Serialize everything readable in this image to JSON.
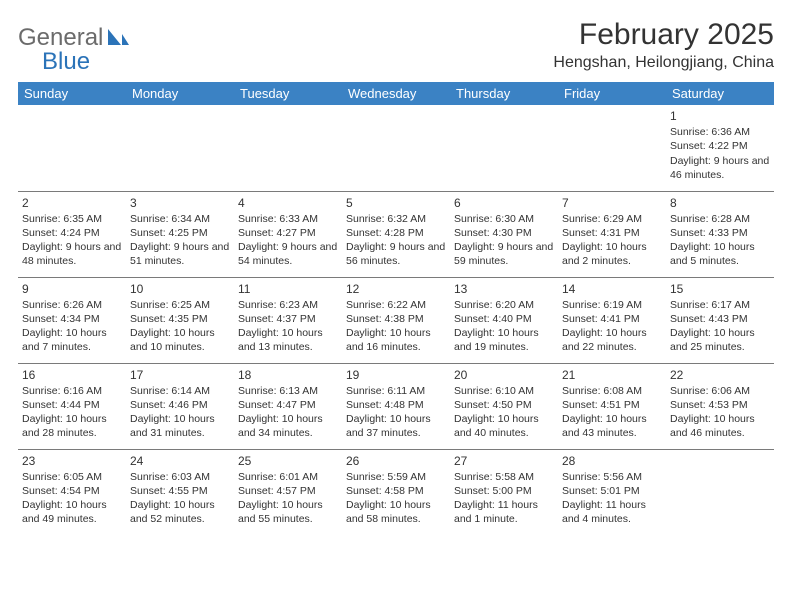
{
  "logo": {
    "part1": "General",
    "part2": "Blue"
  },
  "title": "February 2025",
  "location": "Hengshan, Heilongjiang, China",
  "colors": {
    "header_bg": "#3b82c4",
    "header_fg": "#ffffff",
    "logo_gray": "#6b6b6b",
    "logo_blue": "#2b73b8",
    "text": "#333333",
    "rule": "#7a7a7a",
    "bg": "#ffffff"
  },
  "weekdays": [
    "Sunday",
    "Monday",
    "Tuesday",
    "Wednesday",
    "Thursday",
    "Friday",
    "Saturday"
  ],
  "weeks": [
    [
      null,
      null,
      null,
      null,
      null,
      null,
      {
        "d": "1",
        "sr": "6:36 AM",
        "ss": "4:22 PM",
        "dl": "9 hours and 46 minutes."
      }
    ],
    [
      {
        "d": "2",
        "sr": "6:35 AM",
        "ss": "4:24 PM",
        "dl": "9 hours and 48 minutes."
      },
      {
        "d": "3",
        "sr": "6:34 AM",
        "ss": "4:25 PM",
        "dl": "9 hours and 51 minutes."
      },
      {
        "d": "4",
        "sr": "6:33 AM",
        "ss": "4:27 PM",
        "dl": "9 hours and 54 minutes."
      },
      {
        "d": "5",
        "sr": "6:32 AM",
        "ss": "4:28 PM",
        "dl": "9 hours and 56 minutes."
      },
      {
        "d": "6",
        "sr": "6:30 AM",
        "ss": "4:30 PM",
        "dl": "9 hours and 59 minutes."
      },
      {
        "d": "7",
        "sr": "6:29 AM",
        "ss": "4:31 PM",
        "dl": "10 hours and 2 minutes."
      },
      {
        "d": "8",
        "sr": "6:28 AM",
        "ss": "4:33 PM",
        "dl": "10 hours and 5 minutes."
      }
    ],
    [
      {
        "d": "9",
        "sr": "6:26 AM",
        "ss": "4:34 PM",
        "dl": "10 hours and 7 minutes."
      },
      {
        "d": "10",
        "sr": "6:25 AM",
        "ss": "4:35 PM",
        "dl": "10 hours and 10 minutes."
      },
      {
        "d": "11",
        "sr": "6:23 AM",
        "ss": "4:37 PM",
        "dl": "10 hours and 13 minutes."
      },
      {
        "d": "12",
        "sr": "6:22 AM",
        "ss": "4:38 PM",
        "dl": "10 hours and 16 minutes."
      },
      {
        "d": "13",
        "sr": "6:20 AM",
        "ss": "4:40 PM",
        "dl": "10 hours and 19 minutes."
      },
      {
        "d": "14",
        "sr": "6:19 AM",
        "ss": "4:41 PM",
        "dl": "10 hours and 22 minutes."
      },
      {
        "d": "15",
        "sr": "6:17 AM",
        "ss": "4:43 PM",
        "dl": "10 hours and 25 minutes."
      }
    ],
    [
      {
        "d": "16",
        "sr": "6:16 AM",
        "ss": "4:44 PM",
        "dl": "10 hours and 28 minutes."
      },
      {
        "d": "17",
        "sr": "6:14 AM",
        "ss": "4:46 PM",
        "dl": "10 hours and 31 minutes."
      },
      {
        "d": "18",
        "sr": "6:13 AM",
        "ss": "4:47 PM",
        "dl": "10 hours and 34 minutes."
      },
      {
        "d": "19",
        "sr": "6:11 AM",
        "ss": "4:48 PM",
        "dl": "10 hours and 37 minutes."
      },
      {
        "d": "20",
        "sr": "6:10 AM",
        "ss": "4:50 PM",
        "dl": "10 hours and 40 minutes."
      },
      {
        "d": "21",
        "sr": "6:08 AM",
        "ss": "4:51 PM",
        "dl": "10 hours and 43 minutes."
      },
      {
        "d": "22",
        "sr": "6:06 AM",
        "ss": "4:53 PM",
        "dl": "10 hours and 46 minutes."
      }
    ],
    [
      {
        "d": "23",
        "sr": "6:05 AM",
        "ss": "4:54 PM",
        "dl": "10 hours and 49 minutes."
      },
      {
        "d": "24",
        "sr": "6:03 AM",
        "ss": "4:55 PM",
        "dl": "10 hours and 52 minutes."
      },
      {
        "d": "25",
        "sr": "6:01 AM",
        "ss": "4:57 PM",
        "dl": "10 hours and 55 minutes."
      },
      {
        "d": "26",
        "sr": "5:59 AM",
        "ss": "4:58 PM",
        "dl": "10 hours and 58 minutes."
      },
      {
        "d": "27",
        "sr": "5:58 AM",
        "ss": "5:00 PM",
        "dl": "11 hours and 1 minute."
      },
      {
        "d": "28",
        "sr": "5:56 AM",
        "ss": "5:01 PM",
        "dl": "11 hours and 4 minutes."
      },
      null
    ]
  ],
  "labels": {
    "sunrise": "Sunrise:",
    "sunset": "Sunset:",
    "daylight": "Daylight:"
  }
}
